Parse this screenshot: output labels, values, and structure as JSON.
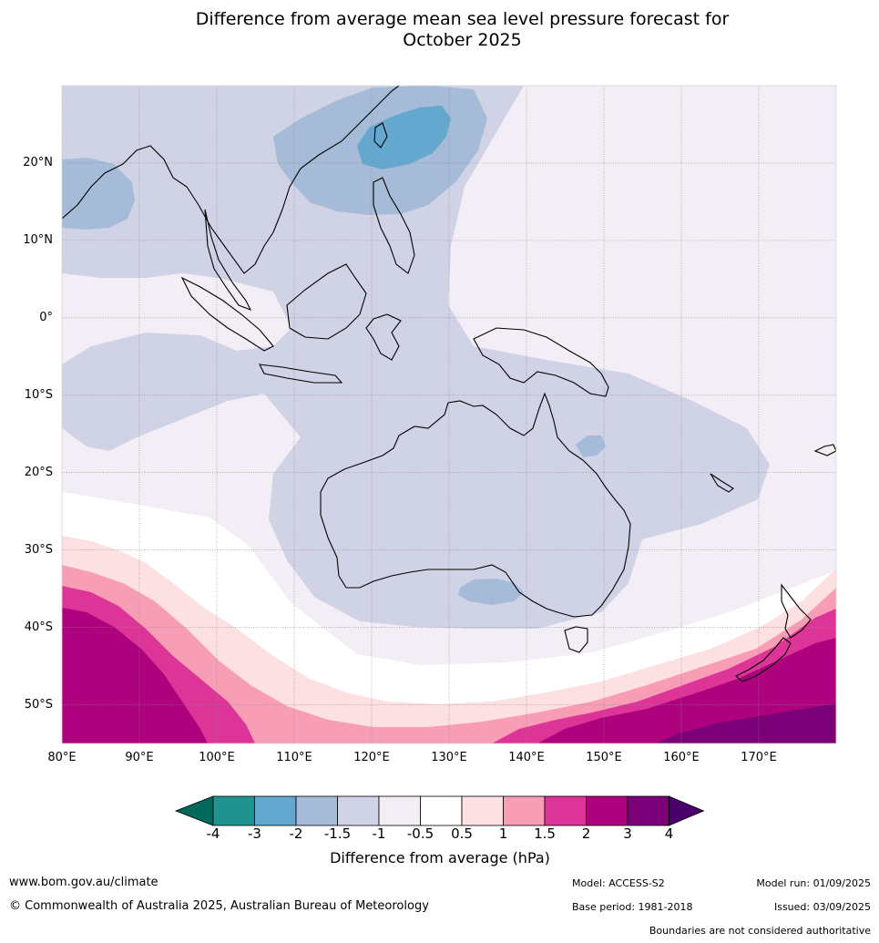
{
  "title_line1": "Difference from average mean sea level pressure forecast for",
  "title_line2": "October 2025",
  "map": {
    "lat_labels": [
      "20°N",
      "10°N",
      "0°",
      "10°S",
      "20°S",
      "30°S",
      "40°S",
      "50°S"
    ],
    "lon_labels": [
      "80°E",
      "90°E",
      "100°E",
      "110°E",
      "120°E",
      "130°E",
      "140°E",
      "150°E",
      "160°E",
      "170°E"
    ],
    "extent": {
      "lon_min": 80,
      "lon_max": 180,
      "lat_min": -55,
      "lat_max": 30
    }
  },
  "colorbar": {
    "title": "Difference from average (hPa)",
    "ticks": [
      "-4",
      "-3",
      "-2",
      "-1.5",
      "-1",
      "-0.5",
      "0.5",
      "1",
      "1.5",
      "2",
      "3",
      "4"
    ],
    "colors": {
      "under": "#00695c",
      "bins": [
        "#20938f",
        "#64a8cf",
        "#a6bbd8",
        "#d0d2e6",
        "#f3edf5",
        "#ffffff",
        "#fde0e1",
        "#f89db6",
        "#dd3497",
        "#ae017e",
        "#7a0177"
      ],
      "over": "#49006a"
    }
  },
  "footer": {
    "url": "www.bom.gov.au/climate",
    "copyright": "© Commonwealth of Australia 2025, Australian Bureau of Meteorology",
    "model": "Model: ACCESS-S2",
    "base_period": "Base period: 1981-2018",
    "model_run": "Model run: 01/09/2025",
    "issued": "Issued: 03/09/2025",
    "disclaimer": "Boundaries are not considered authoritative"
  }
}
